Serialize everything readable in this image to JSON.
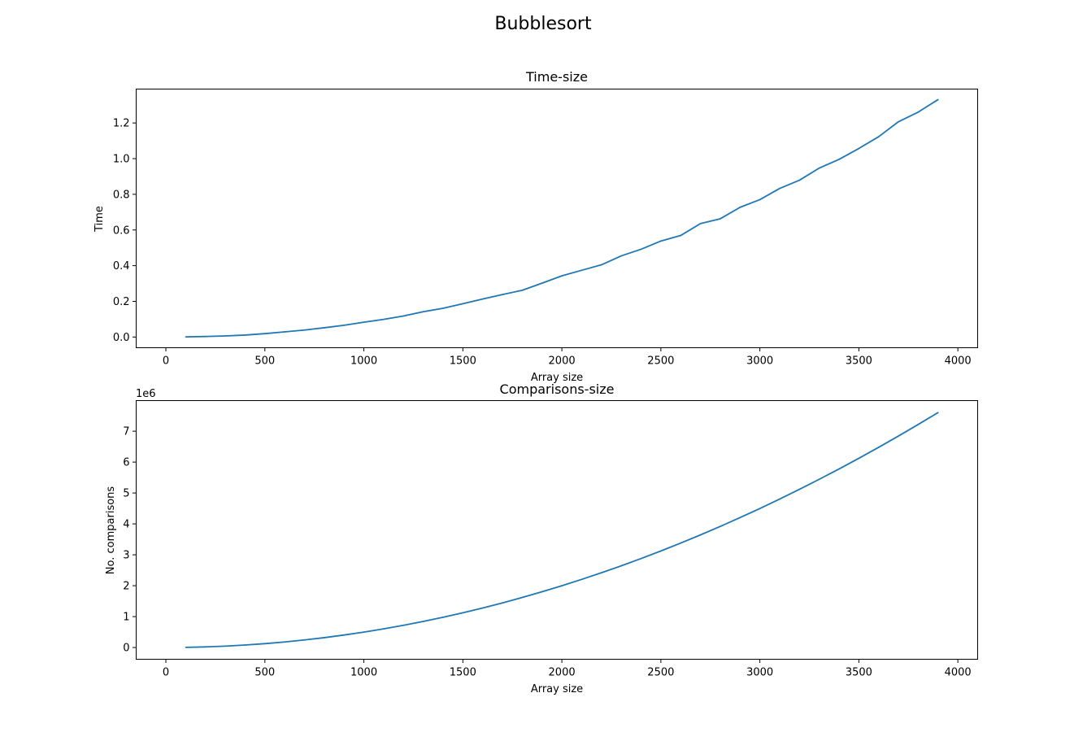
{
  "figure": {
    "suptitle": "Bubblesort"
  },
  "colors": {
    "series": "#1f77b4"
  },
  "chart_data": [
    {
      "type": "line",
      "title": "Time-size",
      "xlabel": "Array size",
      "ylabel": "Time",
      "xlim": [
        -150,
        4100
      ],
      "ylim": [
        -0.06,
        1.39
      ],
      "xticks": [
        0,
        500,
        1000,
        1500,
        2000,
        2500,
        3000,
        3500,
        4000
      ],
      "yticks": [
        0.0,
        0.2,
        0.4,
        0.6,
        0.8,
        1.0,
        1.2
      ],
      "ytick_labels": [
        "0.0",
        "0.2",
        "0.4",
        "0.6",
        "0.8",
        "1.0",
        "1.2"
      ],
      "offset_text": "",
      "grid": false,
      "x": [
        100,
        200,
        300,
        400,
        500,
        600,
        700,
        800,
        900,
        1000,
        1100,
        1200,
        1300,
        1400,
        1500,
        1600,
        1700,
        1800,
        1900,
        2000,
        2100,
        2200,
        2300,
        2400,
        2500,
        2600,
        2700,
        2800,
        2900,
        3000,
        3100,
        3200,
        3300,
        3400,
        3500,
        3600,
        3700,
        3800,
        3900
      ],
      "y": [
        0.001,
        0.003,
        0.006,
        0.011,
        0.019,
        0.029,
        0.039,
        0.052,
        0.066,
        0.083,
        0.099,
        0.118,
        0.142,
        0.161,
        0.187,
        0.213,
        0.238,
        0.262,
        0.302,
        0.343,
        0.374,
        0.405,
        0.455,
        0.492,
        0.538,
        0.569,
        0.636,
        0.663,
        0.727,
        0.77,
        0.833,
        0.879,
        0.947,
        0.996,
        1.057,
        1.123,
        1.207,
        1.261,
        1.331
      ]
    },
    {
      "type": "line",
      "title": "Comparisons-size",
      "xlabel": "Array size",
      "ylabel": "No. comparisons",
      "xlim": [
        -150,
        4100
      ],
      "ylim": [
        -0.38,
        7.99
      ],
      "xticks": [
        0,
        500,
        1000,
        1500,
        2000,
        2500,
        3000,
        3500,
        4000
      ],
      "yticks": [
        0,
        1,
        2,
        3,
        4,
        5,
        6,
        7
      ],
      "ytick_labels": [
        "0",
        "1",
        "2",
        "3",
        "4",
        "5",
        "6",
        "7"
      ],
      "offset_text": "1e6",
      "grid": false,
      "x": [
        100,
        200,
        300,
        400,
        500,
        600,
        700,
        800,
        900,
        1000,
        1100,
        1200,
        1300,
        1400,
        1500,
        1600,
        1700,
        1800,
        1900,
        2000,
        2100,
        2200,
        2300,
        2400,
        2500,
        2600,
        2700,
        2800,
        2900,
        3000,
        3100,
        3200,
        3300,
        3400,
        3500,
        3600,
        3700,
        3800,
        3900
      ],
      "y": [
        0.00495,
        0.0199,
        0.04485,
        0.0798,
        0.12475,
        0.1797,
        0.24465,
        0.3196,
        0.40455,
        0.4995,
        0.60445,
        0.7194,
        0.84435,
        0.9793,
        1.12425,
        1.2792,
        1.44415,
        1.6191,
        1.80405,
        1.999,
        2.20395,
        2.4189,
        2.64385,
        2.8788,
        3.12375,
        3.3787,
        3.64365,
        3.9186,
        4.20355,
        4.4985,
        4.80345,
        5.1184,
        5.44335,
        5.7783,
        6.12325,
        6.4782,
        6.84315,
        7.2181,
        7.60305
      ]
    }
  ]
}
